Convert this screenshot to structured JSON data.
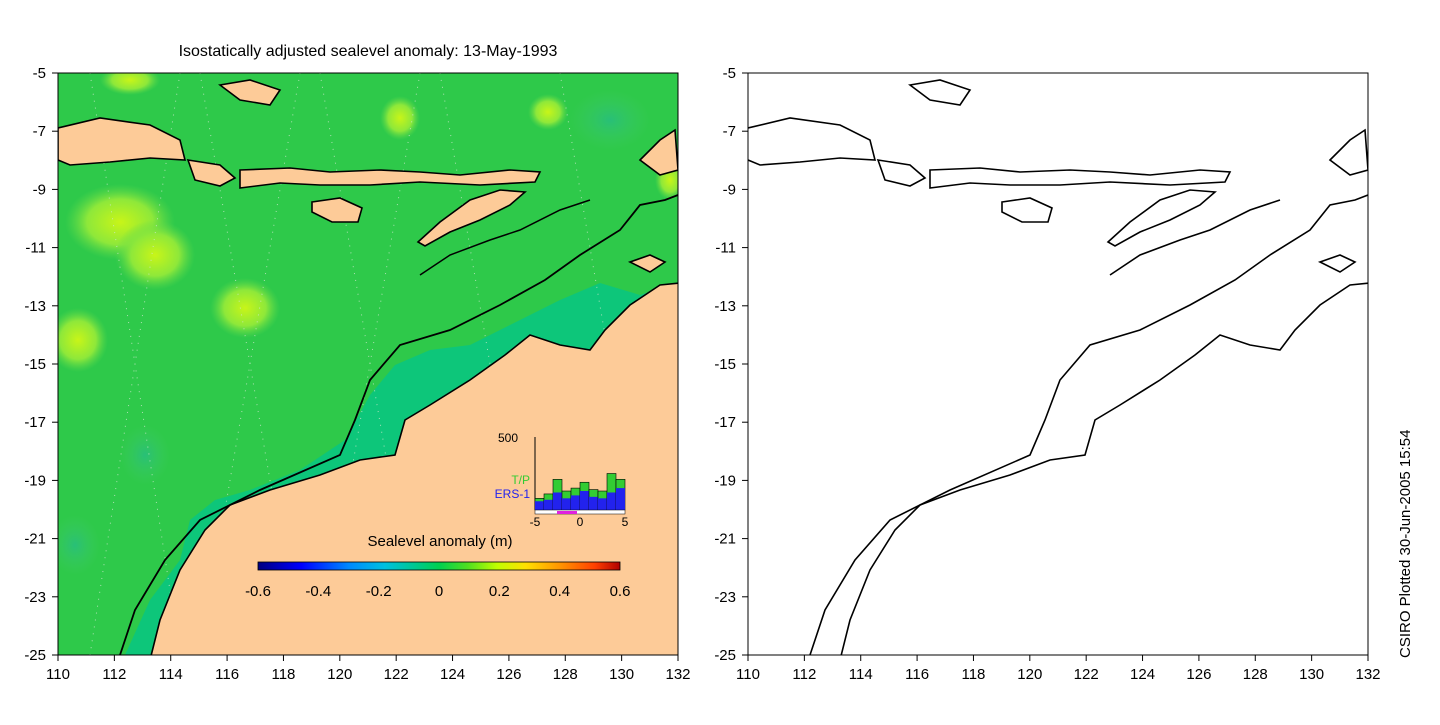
{
  "title": "Isostatically adjusted sealevel anomaly: 13-May-1993",
  "credit": "CSIRO Plotted 30-Jun-2005 15:54",
  "map": {
    "lon_range": [
      110,
      132
    ],
    "lat_range": [
      -25,
      -5
    ],
    "x_ticks": [
      "110",
      "112",
      "114",
      "116",
      "118",
      "120",
      "122",
      "124",
      "126",
      "128",
      "130",
      "132"
    ],
    "y_ticks": [
      "-5",
      "-7",
      "-9",
      "-11",
      "-13",
      "-15",
      "-17",
      "-19",
      "-21",
      "-23",
      "-25"
    ],
    "land_color": "#fdcb98",
    "ocean_color": "#2ec94a"
  },
  "colorbar": {
    "title": "Sealevel anomaly (m)",
    "ticks": [
      "-0.6",
      "-0.4",
      "-0.2",
      "0",
      "0.2",
      "0.4",
      "0.6"
    ],
    "range": [
      -0.6,
      0.6
    ],
    "colors": [
      "#000080",
      "#0000ff",
      "#0080ff",
      "#00c0ff",
      "#00d09a",
      "#00d050",
      "#40e020",
      "#c0ff00",
      "#ffe000",
      "#ff9000",
      "#ff4000",
      "#b00000"
    ]
  },
  "histogram": {
    "y_label": "500",
    "x_ticks": [
      "-5",
      "0",
      "5"
    ],
    "legend": [
      {
        "label": "T/P",
        "color": "#33cc33"
      },
      {
        "label": "ERS-1",
        "color": "#2222ee"
      }
    ],
    "bins": [
      -5,
      -4,
      -3,
      -2,
      -1,
      0,
      1,
      2,
      3,
      4
    ],
    "tp_counts": [
      80,
      110,
      210,
      130,
      150,
      190,
      140,
      130,
      250,
      210
    ],
    "ers1_counts": [
      60,
      70,
      120,
      80,
      100,
      130,
      90,
      80,
      120,
      150
    ],
    "y_max": 500
  }
}
